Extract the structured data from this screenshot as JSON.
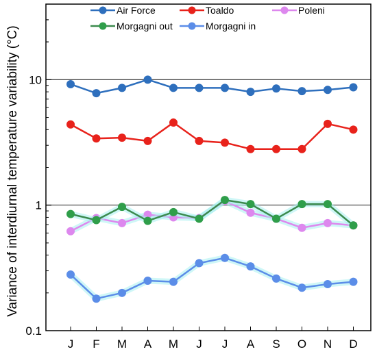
{
  "chart_data": {
    "type": "line",
    "title": "",
    "xlabel": "",
    "ylabel": "Variance of interdiurnal temperature variability (°C)",
    "yscale": "log",
    "ylim": [
      0.1,
      40
    ],
    "categories": [
      "J",
      "F",
      "M",
      "A",
      "M",
      "J",
      "J",
      "A",
      "S",
      "O",
      "N",
      "D"
    ],
    "yticks": [
      {
        "value": 0.1,
        "label": "0.1"
      },
      {
        "value": 1,
        "label": "1"
      },
      {
        "value": 10,
        "label": "10"
      }
    ],
    "reference_lines": [
      1,
      10
    ],
    "legend_position": "top",
    "series": [
      {
        "name": "Air Force",
        "color": "#2e6fbd",
        "line_color": "#2e6fbd",
        "values": [
          9.2,
          7.8,
          8.6,
          10.0,
          8.6,
          8.6,
          8.6,
          8.0,
          8.5,
          8.1,
          8.3,
          8.7
        ]
      },
      {
        "name": "Toaldo",
        "color": "#e8221b",
        "line_color": "#e8221b",
        "values": [
          4.4,
          3.4,
          3.45,
          3.25,
          4.55,
          3.25,
          3.15,
          2.8,
          2.8,
          2.8,
          4.45,
          4.0
        ]
      },
      {
        "name": "Poleni",
        "color": "#dd88ee",
        "line_color": "#dd88ee",
        "values": [
          0.62,
          0.79,
          0.72,
          0.84,
          0.8,
          0.79,
          1.08,
          0.87,
          0.78,
          0.66,
          0.72,
          0.69
        ]
      },
      {
        "name": "Morgagni out",
        "color": "#2f9e4a",
        "line_color": "#3b8a4e",
        "values": [
          0.85,
          0.76,
          0.97,
          0.75,
          0.88,
          0.78,
          1.1,
          1.02,
          0.78,
          1.02,
          1.02,
          0.69
        ]
      },
      {
        "name": "Morgagni in",
        "color": "#5b8de8",
        "line_color": "#5b8de8",
        "values": [
          0.28,
          0.18,
          0.2,
          0.25,
          0.245,
          0.345,
          0.38,
          0.325,
          0.26,
          0.22,
          0.235,
          0.245
        ]
      }
    ]
  }
}
